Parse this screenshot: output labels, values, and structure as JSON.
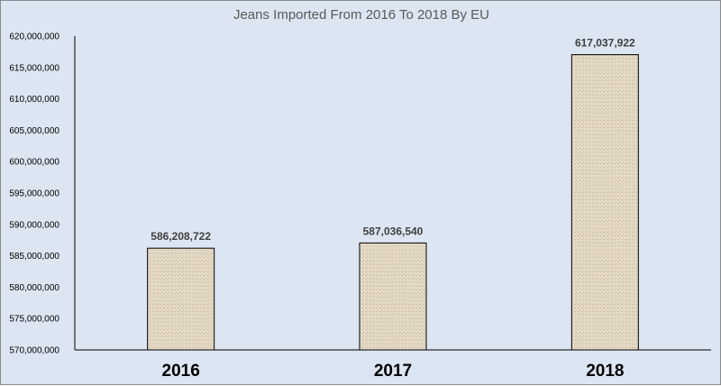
{
  "chart_data": {
    "type": "bar",
    "title": "Jeans Imported From 2016 To 2018 By EU",
    "xlabel": "",
    "ylabel": "",
    "categories": [
      "2016",
      "2017",
      "2018"
    ],
    "values": [
      586208722,
      587036540,
      617037922
    ],
    "data_labels": [
      "586,208,722",
      "587,036,540",
      "617,037,922"
    ],
    "ylim": [
      570000000,
      620000000
    ],
    "yticks": [
      570000000,
      575000000,
      580000000,
      585000000,
      590000000,
      595000000,
      600000000,
      605000000,
      610000000,
      615000000,
      620000000
    ],
    "ytick_labels": [
      "570,000,000",
      "575,000,000",
      "580,000,000",
      "585,000,000",
      "590,000,000",
      "595,000,000",
      "600,000,000",
      "605,000,000",
      "610,000,000",
      "615,000,000",
      "620,000,000"
    ],
    "grid": false,
    "legend": "none",
    "colors": {
      "background": "#dce6f2",
      "bar_fill": "#e4d9c5",
      "bar_texture": "#cbbd9f",
      "bar_stroke": "#000000",
      "axis": "#000000",
      "title": "#595959",
      "data_label": "#404040"
    }
  }
}
